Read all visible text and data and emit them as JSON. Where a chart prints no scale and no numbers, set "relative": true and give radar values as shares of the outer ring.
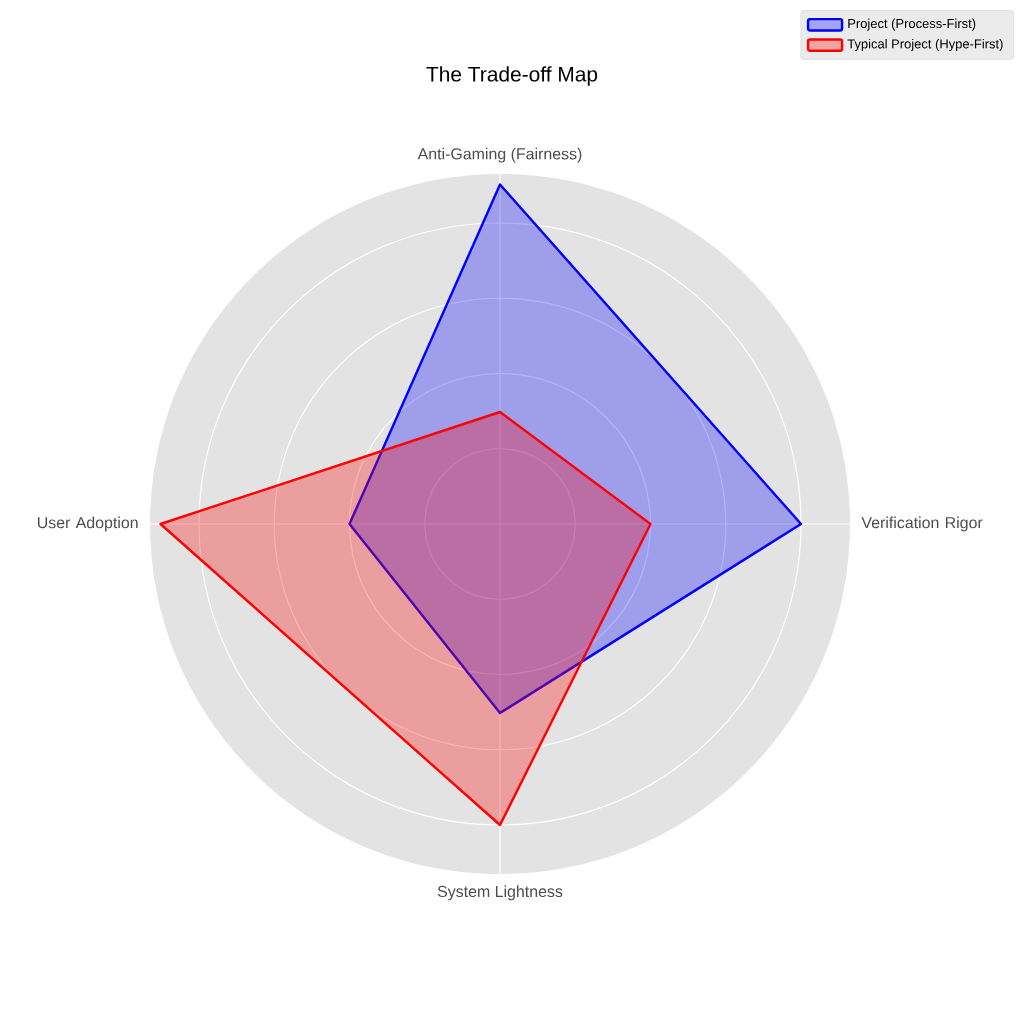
{
  "chart_data": {
    "type": "radar",
    "title": "The Trade-off Map",
    "relative": true,
    "grid": true,
    "legend": "top right",
    "categories": [
      "Anti-Gaming (Fairness)",
      "Verification Rigor",
      "System Lightness",
      "User Adoption"
    ],
    "series": [
      {
        "name": "Project (Process-First)",
        "color": "#0000ff",
        "values": [
          0.97,
          0.86,
          0.54,
          0.43
        ]
      },
      {
        "name": "Typical Project (Hype-First)",
        "color": "#ff0000",
        "values": [
          0.32,
          0.43,
          0.86,
          0.97
        ]
      }
    ]
  }
}
